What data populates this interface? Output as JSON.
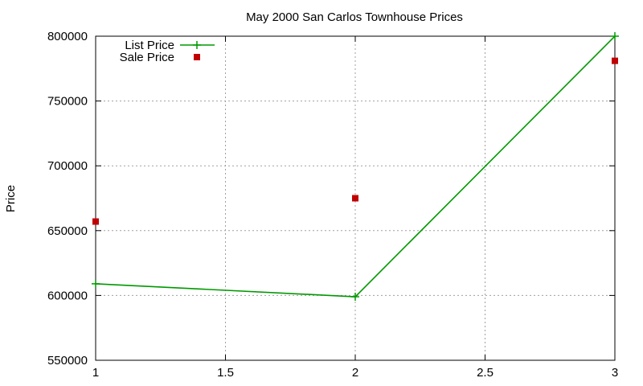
{
  "chart_data": {
    "type": "line",
    "title": "May 2000 San Carlos Townhouse Prices",
    "xlabel": "",
    "ylabel": "Price",
    "xlim": [
      1,
      3
    ],
    "ylim": [
      550000,
      800000
    ],
    "x_ticks": [
      {
        "value": 1,
        "label": "1"
      },
      {
        "value": 1.5,
        "label": "1.5"
      },
      {
        "value": 2,
        "label": "2"
      },
      {
        "value": 2.5,
        "label": "2.5"
      },
      {
        "value": 3,
        "label": "3"
      }
    ],
    "y_ticks": [
      {
        "value": 550000,
        "label": "550000"
      },
      {
        "value": 600000,
        "label": "600000"
      },
      {
        "value": 650000,
        "label": "650000"
      },
      {
        "value": 700000,
        "label": "700000"
      },
      {
        "value": 750000,
        "label": "750000"
      },
      {
        "value": 800000,
        "label": "800000"
      }
    ],
    "grid": true,
    "legend_position": "top-left",
    "series": [
      {
        "name": "List Price",
        "style": "linespoints",
        "marker": "plus",
        "color": "#009900",
        "x": [
          1,
          2,
          3
        ],
        "y": [
          609000,
          599000,
          800000
        ]
      },
      {
        "name": "Sale Price",
        "style": "points",
        "marker": "square",
        "color": "#c00000",
        "x": [
          1,
          2,
          3
        ],
        "y": [
          657000,
          675000,
          781000
        ]
      }
    ]
  }
}
